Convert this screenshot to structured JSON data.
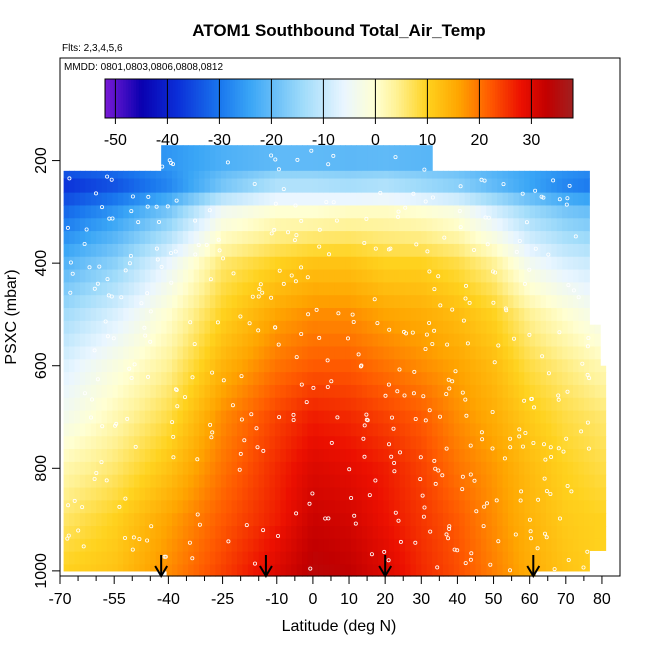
{
  "chart_data": {
    "type": "heatmap",
    "title": "ATOM1 Southbound Total_Air_Temp",
    "subtitle_flights": "Flts: 2,3,4,5,6",
    "subtitle_dates": "MMDD: 0801,0803,0806,0808,0812",
    "xlabel": "Latitude (deg N)",
    "ylabel": "PSXC (mbar)",
    "xlim": [
      -70,
      85
    ],
    "ylim": [
      1010,
      0
    ],
    "x_ticks": [
      -70,
      -55,
      -40,
      -25,
      -10,
      0,
      10,
      20,
      30,
      40,
      50,
      60,
      70,
      80
    ],
    "x_tick_labels": [
      "-70",
      "-55",
      "-40",
      "-25",
      "-10",
      "0",
      "10",
      "20",
      "30",
      "40",
      "50",
      "60",
      "70",
      "80"
    ],
    "x_minor_ticks": [
      -65,
      -60,
      -50,
      -45,
      -35,
      -30,
      -20,
      -15,
      -5,
      5,
      15,
      25,
      35,
      45,
      55,
      65,
      75
    ],
    "y_ticks": [
      200,
      400,
      600,
      800,
      1000
    ],
    "y_tick_labels": [
      "200",
      "400",
      "600",
      "800",
      "1000"
    ],
    "colorbar": {
      "range": [
        -52,
        38
      ],
      "ticks": [
        -50,
        -40,
        -30,
        -20,
        -10,
        0,
        10,
        20,
        30
      ],
      "tick_labels": [
        "-50",
        "-40",
        "-30",
        "-20",
        "-10",
        "0",
        "10",
        "20",
        "30"
      ],
      "colors": [
        "#7a1ad6",
        "#0a00b0",
        "#0b2fd8",
        "#1976ee",
        "#3aa6f6",
        "#9fdbfa",
        "#eaf6ff",
        "#ffffd2",
        "#fff296",
        "#ffd21e",
        "#ffa500",
        "#ff5a00",
        "#ec1000",
        "#c20000",
        "#a02020"
      ],
      "color_stops": [
        -52,
        -45,
        -38,
        -30,
        -24,
        -14,
        -6,
        0,
        4,
        10,
        16,
        22,
        28,
        33,
        38
      ]
    },
    "profile_markers_lat": [
      -42,
      -13,
      20,
      61
    ],
    "pressure_levels": [
      220,
      250,
      275,
      300,
      325,
      350,
      375,
      400,
      425,
      450,
      475,
      500,
      525,
      550,
      575,
      600,
      625,
      650,
      675,
      700,
      725,
      750,
      775,
      800,
      825,
      850,
      875,
      900,
      925,
      950,
      975,
      1000
    ],
    "column_tops": [
      {
        "lat": [
          -69,
          -42
        ],
        "p": 220
      },
      {
        "lat": [
          -42,
          33
        ],
        "p": 170
      },
      {
        "lat": [
          33,
          76
        ],
        "p": 220
      },
      {
        "lat": [
          76,
          79
        ],
        "p": 520
      },
      {
        "lat": [
          79,
          81
        ],
        "p": 600
      }
    ],
    "column_bottom": [
      {
        "lat": [
          -69,
          -40
        ],
        "p": 1000
      },
      {
        "lat": [
          -40,
          62
        ],
        "p": 1010
      },
      {
        "lat": [
          62,
          76
        ],
        "p": 1000
      },
      {
        "lat": [
          76,
          81
        ],
        "p": 960
      }
    ],
    "temperature_profile": {
      "lat_nodes": [
        -70,
        -55,
        -40,
        -25,
        -10,
        0,
        10,
        20,
        30,
        40,
        50,
        60,
        70,
        80
      ],
      "p_nodes": [
        170,
        250,
        300,
        400,
        500,
        600,
        700,
        800,
        900,
        1000
      ],
      "temp_c": [
        [
          -26,
          -26,
          -25,
          -24,
          -24,
          -24,
          -24,
          -24,
          -24,
          -24,
          -24,
          -24,
          -24,
          -24
        ],
        [
          -38,
          -34,
          -28,
          -18,
          -12,
          -12,
          -13,
          -12,
          -14,
          -16,
          -20,
          -24,
          -28,
          -30
        ],
        [
          -32,
          -26,
          -18,
          -4,
          0,
          0,
          1,
          1,
          0,
          -2,
          -8,
          -14,
          -18,
          -20
        ],
        [
          -22,
          -16,
          -6,
          6,
          10,
          12,
          12,
          10,
          10,
          8,
          4,
          -4,
          -8,
          -10
        ],
        [
          -14,
          -8,
          0,
          10,
          16,
          18,
          18,
          16,
          15,
          13,
          10,
          4,
          0,
          -4
        ],
        [
          -8,
          -2,
          4,
          14,
          20,
          22,
          22,
          20,
          18,
          16,
          13,
          8,
          5,
          2
        ],
        [
          -4,
          2,
          8,
          18,
          24,
          27,
          26,
          24,
          22,
          18,
          15,
          11,
          8,
          6
        ],
        [
          2,
          6,
          12,
          20,
          26,
          30,
          29,
          27,
          24,
          20,
          17,
          13,
          10,
          8
        ],
        [
          6,
          10,
          16,
          22,
          27,
          32,
          31,
          28,
          25,
          22,
          18,
          14,
          11,
          10
        ],
        [
          10,
          12,
          18,
          24,
          30,
          34,
          33,
          30,
          26,
          23,
          19,
          15,
          12,
          10
        ]
      ]
    }
  }
}
